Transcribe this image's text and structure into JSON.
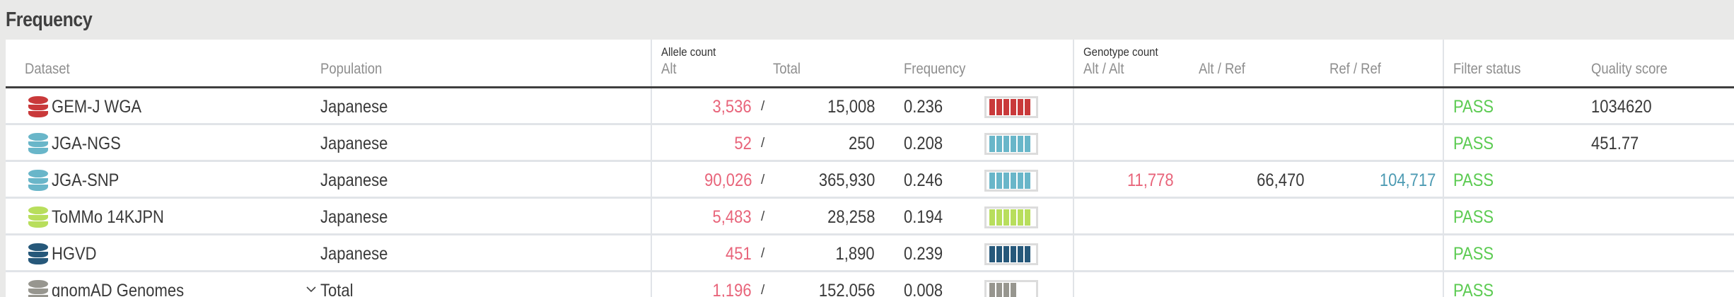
{
  "section": {
    "title": "Frequency"
  },
  "table": {
    "group_headers": {
      "allele_count": "Allele count",
      "genotype_count": "Genotype count"
    },
    "columns": {
      "dataset": "Dataset",
      "population": "Population",
      "alt": "Alt",
      "total": "Total",
      "frequency": "Frequency",
      "alt_alt": "Alt / Alt",
      "alt_ref": "Alt / Ref",
      "ref_ref": "Ref / Ref",
      "filter_status": "Filter status",
      "quality_score": "Quality score"
    },
    "separator": "/",
    "rows": [
      {
        "dataset": "GEM-J WGA",
        "icon": "database-icon",
        "icon_color": "#c9393a",
        "population": "Japanese",
        "expandable": false,
        "alt": "3,536",
        "total": "15,008",
        "frequency": "0.236",
        "bar_segments": 6,
        "alt_alt": "",
        "alt_ref": "",
        "ref_ref": "",
        "filter_status": "PASS",
        "quality_score": "1034620"
      },
      {
        "dataset": "JGA-NGS",
        "icon": "database-icon",
        "icon_color": "#69b6c9",
        "population": "Japanese",
        "expandable": false,
        "alt": "52",
        "total": "250",
        "frequency": "0.208",
        "bar_segments": 6,
        "alt_alt": "",
        "alt_ref": "",
        "ref_ref": "",
        "filter_status": "PASS",
        "quality_score": "451.77"
      },
      {
        "dataset": "JGA-SNP",
        "icon": "database-icon",
        "icon_color": "#69b6c9",
        "population": "Japanese",
        "expandable": false,
        "alt": "90,026",
        "total": "365,930",
        "frequency": "0.246",
        "bar_segments": 6,
        "alt_alt": "11,778",
        "alt_ref": "66,470",
        "ref_ref": "104,717",
        "filter_status": "PASS",
        "quality_score": ""
      },
      {
        "dataset": "ToMMo 14KJPN",
        "icon": "database-icon",
        "icon_color": "#b8de5c",
        "population": "Japanese",
        "expandable": false,
        "alt": "5,483",
        "total": "28,258",
        "frequency": "0.194",
        "bar_segments": 6,
        "alt_alt": "",
        "alt_ref": "",
        "ref_ref": "",
        "filter_status": "PASS",
        "quality_score": ""
      },
      {
        "dataset": "HGVD",
        "icon": "database-icon",
        "icon_color": "#26587a",
        "population": "Japanese",
        "expandable": false,
        "alt": "451",
        "total": "1,890",
        "frequency": "0.239",
        "bar_segments": 6,
        "alt_alt": "",
        "alt_ref": "",
        "ref_ref": "",
        "filter_status": "PASS",
        "quality_score": ""
      },
      {
        "dataset": "gnomAD Genomes",
        "icon": "database-icon",
        "icon_color": "#97968f",
        "population": "Total",
        "expandable": true,
        "alt": "1,196",
        "total": "152,056",
        "frequency": "0.008",
        "bar_segments": 4,
        "alt_alt": "",
        "alt_ref": "",
        "ref_ref": "",
        "filter_status": "PASS",
        "quality_score": ""
      }
    ]
  },
  "colors": {
    "background": "#e9e9e8",
    "alt_value": "#e8647a",
    "ref_value": "#4d9bb3",
    "pass": "#5ccb52",
    "header_rule": "#3f3f3f",
    "row_divider": "#e1e4e8"
  }
}
